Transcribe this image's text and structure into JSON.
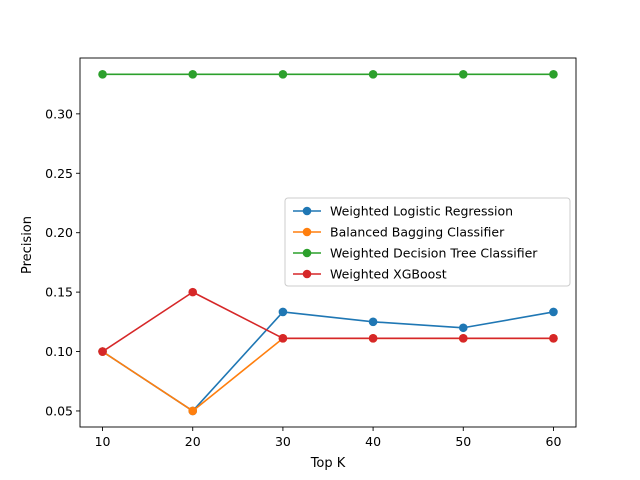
{
  "chart_data": {
    "type": "line",
    "title": "",
    "xlabel": "Top K",
    "ylabel": "Precision",
    "x": [
      10,
      20,
      30,
      40,
      50,
      60
    ],
    "xlim": [
      7.5,
      62.5
    ],
    "ylim": [
      0.0365,
      0.347
    ],
    "xticks": [
      10,
      20,
      30,
      40,
      50,
      60
    ],
    "yticks": [
      0.05,
      0.1,
      0.15,
      0.2,
      0.25,
      0.3
    ],
    "ytick_labels": [
      "0.05",
      "0.10",
      "0.15",
      "0.20",
      "0.25",
      "0.30"
    ],
    "legend_position": "center-right",
    "grid": false,
    "series": [
      {
        "name": "Weighted Logistic Regression",
        "color": "#1f77b4",
        "values": [
          0.1,
          0.05,
          0.1333,
          0.125,
          0.12,
          0.1333
        ]
      },
      {
        "name": "Balanced Bagging Classifier",
        "color": "#ff7f0e",
        "values": [
          0.1,
          0.05,
          0.1111,
          0.1111,
          0.1111,
          0.1111
        ]
      },
      {
        "name": "Weighted Decision Tree Classifier",
        "color": "#2ca02c",
        "values": [
          0.3333,
          0.3333,
          0.3333,
          0.3333,
          0.3333,
          0.3333
        ]
      },
      {
        "name": "Weighted XGBoost",
        "color": "#d62728",
        "values": [
          0.1,
          0.15,
          0.1111,
          0.1111,
          0.1111,
          0.1111
        ]
      }
    ]
  }
}
